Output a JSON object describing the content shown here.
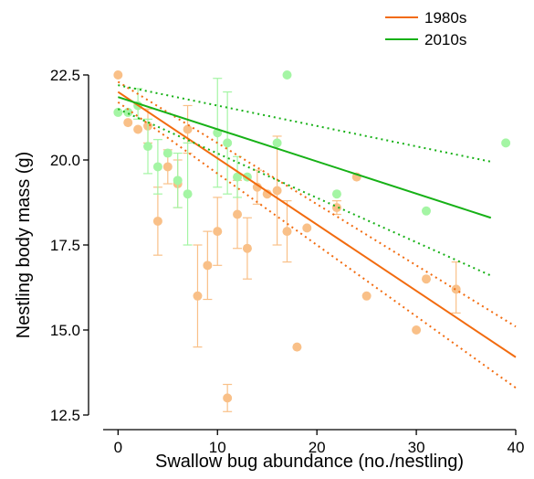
{
  "chart_data": {
    "type": "scatter",
    "title": "",
    "xlabel": "Swallow bug abundance (no./nestling)",
    "ylabel": "Nestling body mass (g)",
    "xlim": [
      -1.5,
      40
    ],
    "ylim": [
      12.5,
      22.5
    ],
    "x_ticks": [
      "0",
      "10",
      "20",
      "30",
      "40"
    ],
    "y_ticks": [
      "12.5",
      "15.0",
      "17.5",
      "20.0",
      "22.5"
    ],
    "legend_position": "top-right",
    "colors": {
      "1980s": "#f26b0f",
      "1980s_points": "#f9c088",
      "2010s": "#17b117",
      "2010s_points": "#a4f5a4"
    },
    "series": [
      {
        "name": "1980s",
        "points": [
          {
            "x": 0,
            "y": 22.5
          },
          {
            "x": 1,
            "y": 21.1
          },
          {
            "x": 2,
            "y": 20.9
          },
          {
            "x": 3,
            "y": 21.0,
            "ylo": 20.5,
            "yhi": 21.5
          },
          {
            "x": 4,
            "y": 18.2,
            "ylo": 17.2,
            "yhi": 19.2
          },
          {
            "x": 5,
            "y": 19.8,
            "ylo": 19.3,
            "yhi": 20.3
          },
          {
            "x": 6,
            "y": 19.3,
            "ylo": 18.6,
            "yhi": 20.0
          },
          {
            "x": 7,
            "y": 20.9,
            "ylo": 20.2,
            "yhi": 21.6
          },
          {
            "x": 8,
            "y": 16.0,
            "ylo": 14.5,
            "yhi": 17.5
          },
          {
            "x": 9,
            "y": 16.9,
            "ylo": 15.9,
            "yhi": 17.9
          },
          {
            "x": 10,
            "y": 17.9,
            "ylo": 16.9,
            "yhi": 18.9
          },
          {
            "x": 11,
            "y": 13.0,
            "ylo": 12.6,
            "yhi": 13.4
          },
          {
            "x": 12,
            "y": 18.4,
            "ylo": 17.4,
            "yhi": 19.4
          },
          {
            "x": 13,
            "y": 17.4,
            "ylo": 16.5,
            "yhi": 18.3
          },
          {
            "x": 14,
            "y": 19.2,
            "ylo": 18.7,
            "yhi": 19.7
          },
          {
            "x": 15,
            "y": 19.0
          },
          {
            "x": 16,
            "y": 19.1,
            "ylo": 17.5,
            "yhi": 20.7
          },
          {
            "x": 17,
            "y": 17.9,
            "ylo": 17.0,
            "yhi": 18.8
          },
          {
            "x": 18,
            "y": 14.5
          },
          {
            "x": 19,
            "y": 18.0
          },
          {
            "x": 22,
            "y": 18.6,
            "ylo": 18.4,
            "yhi": 18.8
          },
          {
            "x": 24,
            "y": 19.5
          },
          {
            "x": 25,
            "y": 16.0
          },
          {
            "x": 30,
            "y": 15.0
          },
          {
            "x": 31,
            "y": 16.5
          },
          {
            "x": 34,
            "y": 16.2,
            "ylo": 15.5,
            "yhi": 17.0
          }
        ],
        "fit": {
          "x": [
            0,
            40
          ],
          "y": [
            22.0,
            14.2
          ]
        },
        "ci_upper": {
          "x": [
            0,
            40
          ],
          "y": [
            22.3,
            15.1
          ]
        },
        "ci_lower": {
          "x": [
            0,
            40
          ],
          "y": [
            21.7,
            13.3
          ]
        }
      },
      {
        "name": "2010s",
        "points": [
          {
            "x": 0,
            "y": 21.4
          },
          {
            "x": 1,
            "y": 21.4
          },
          {
            "x": 2,
            "y": 21.6,
            "ylo": 21.2,
            "yhi": 22.1
          },
          {
            "x": 3,
            "y": 20.4,
            "ylo": 19.6,
            "yhi": 21.2
          },
          {
            "x": 4,
            "y": 19.8,
            "ylo": 19.0,
            "yhi": 20.6
          },
          {
            "x": 5,
            "y": 20.2
          },
          {
            "x": 6,
            "y": 19.4,
            "ylo": 18.6,
            "yhi": 20.2
          },
          {
            "x": 7,
            "y": 19.0,
            "ylo": 17.5,
            "yhi": 20.5
          },
          {
            "x": 10,
            "y": 20.8,
            "ylo": 19.2,
            "yhi": 22.4
          },
          {
            "x": 11,
            "y": 20.5,
            "ylo": 19.0,
            "yhi": 22.0
          },
          {
            "x": 12,
            "y": 19.5,
            "ylo": 18.9,
            "yhi": 20.1
          },
          {
            "x": 13,
            "y": 19.5
          },
          {
            "x": 16,
            "y": 20.5
          },
          {
            "x": 17,
            "y": 22.5
          },
          {
            "x": 22,
            "y": 19.0
          },
          {
            "x": 31,
            "y": 18.5
          },
          {
            "x": 39,
            "y": 20.5
          }
        ],
        "fit": {
          "x": [
            0,
            37.5
          ],
          "y": [
            21.85,
            18.3
          ]
        },
        "ci_upper": {
          "x": [
            0,
            37.5
          ],
          "y": [
            22.2,
            19.95
          ]
        },
        "ci_lower": {
          "x": [
            0,
            37.5
          ],
          "y": [
            21.5,
            16.6
          ]
        }
      }
    ]
  }
}
